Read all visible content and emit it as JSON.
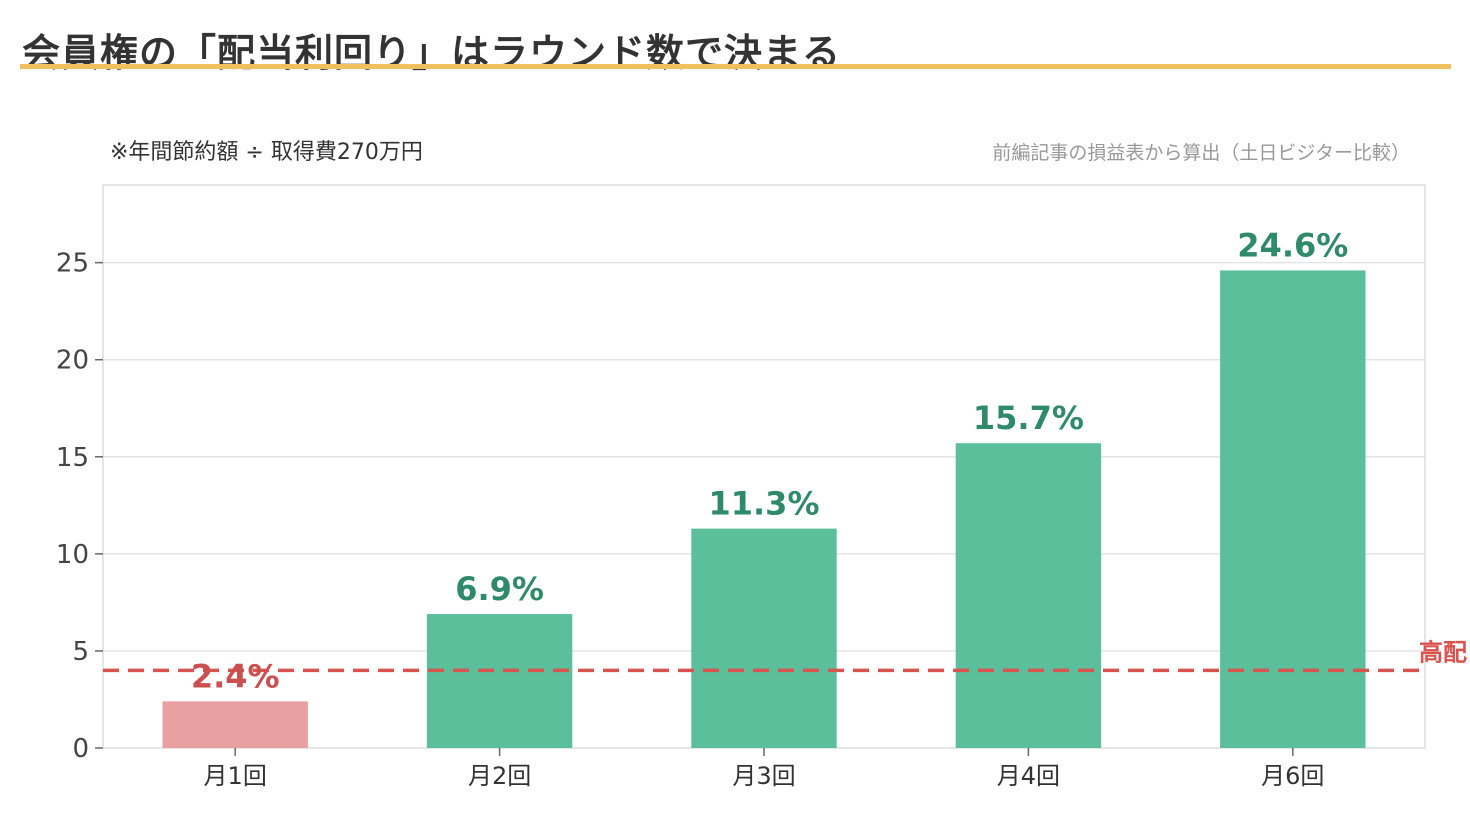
{
  "header": {
    "title": "会員権の「配当利回り」はラウンド数で決まる",
    "note_left": "※年間節約額 ÷ 取得費270万円",
    "note_right": "前編記事の損益表から算出（土日ビジター比較）"
  },
  "colors": {
    "accent_rule": "#f0c060",
    "bar_green": "#5bbf9c",
    "bar_red": "#e8a0a0",
    "label_green": "#2e8a68",
    "label_red": "#c9504f",
    "reference_line": "#d9534f"
  },
  "chart_data": {
    "type": "bar",
    "categories": [
      "月1回",
      "月2回",
      "月3回",
      "月4回",
      "月6回"
    ],
    "values": [
      2.4,
      6.9,
      11.3,
      15.7,
      24.6
    ],
    "value_labels": [
      "2.4%",
      "6.9%",
      "11.3%",
      "15.7%",
      "24.6%"
    ],
    "bar_colors": [
      "#e8a0a0",
      "#5bbf9c",
      "#5bbf9c",
      "#5bbf9c",
      "#5bbf9c"
    ],
    "label_colors": [
      "#c9504f",
      "#2e8a68",
      "#2e8a68",
      "#2e8a68",
      "#2e8a68"
    ],
    "ylim": [
      0,
      29
    ],
    "yticks": [
      0,
      5,
      10,
      15,
      20,
      25
    ],
    "reference_line": {
      "value": 4,
      "label": "高配",
      "style": "dashed"
    },
    "grid": true,
    "xlabel": "",
    "ylabel": ""
  }
}
